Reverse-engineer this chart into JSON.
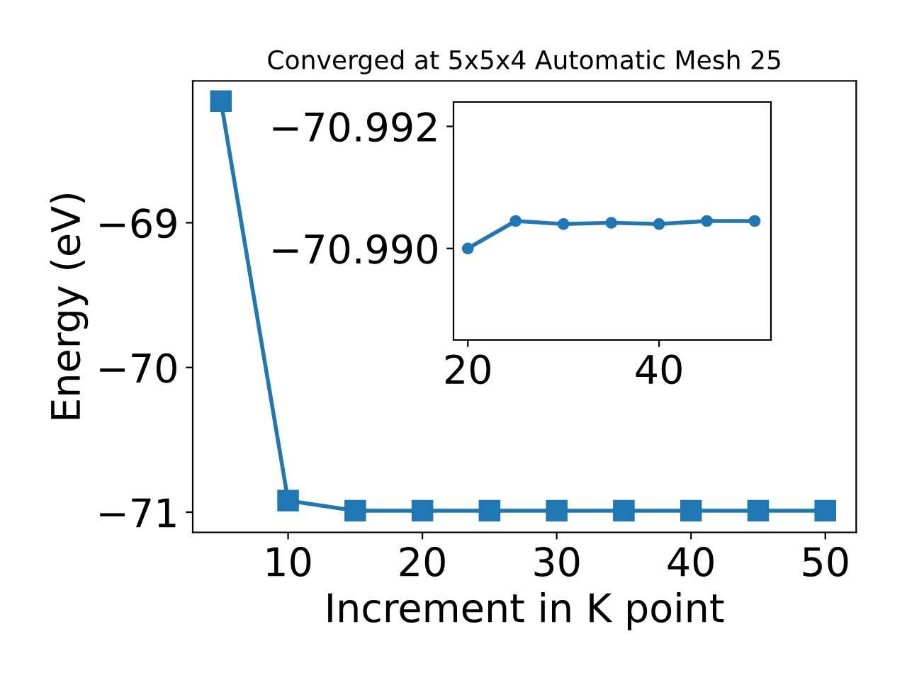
{
  "chart_data": [
    {
      "type": "line",
      "title": "Converged at 5x5x4 Automatic Mesh 25",
      "xlabel": "Increment in K point",
      "ylabel": "Energy (eV)",
      "x": [
        5,
        10,
        15,
        20,
        25,
        30,
        35,
        40,
        45,
        50
      ],
      "values": [
        -68.16,
        -70.92,
        -70.99,
        -70.99,
        -70.99,
        -70.99,
        -70.99,
        -70.99,
        -70.99,
        -70.99
      ],
      "color": "#1f77b4",
      "marker": "square",
      "xlim": [
        2.9,
        52.3
      ],
      "ylim": [
        -71.14,
        -68.02
      ],
      "xticks": [
        10,
        20,
        30,
        40,
        50
      ],
      "yticks": [
        {
          "value": -71,
          "label": "−71"
        },
        {
          "value": -70,
          "label": "−70"
        },
        {
          "value": -69,
          "label": "−69"
        }
      ]
    },
    {
      "type": "line",
      "x": [
        20,
        25,
        30,
        35,
        40,
        45,
        50
      ],
      "values": [
        -70.99,
        -70.99045,
        -70.9904,
        -70.99042,
        -70.9904,
        -70.99045,
        -70.99045
      ],
      "color": "#1f77b4",
      "marker": "circle",
      "xlim": [
        18.5,
        51.7
      ],
      "ylim": [
        -70.9885,
        -70.9924
      ],
      "xticks": [
        20,
        40
      ],
      "yticks": [
        {
          "value": -70.99,
          "label": "−70.990"
        },
        {
          "value": -70.992,
          "label": "−70.992"
        }
      ]
    }
  ]
}
